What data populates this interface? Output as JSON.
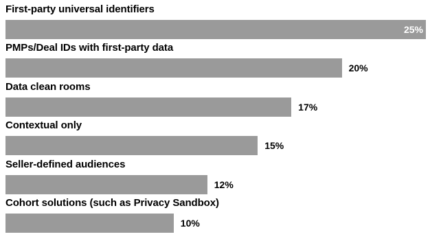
{
  "chart_data": {
    "type": "bar",
    "orientation": "horizontal",
    "categories": [
      "First-party universal identifiers",
      "PMPs/Deal IDs with first-party data",
      "Data clean rooms",
      "Contextual only",
      "Seller-defined audiences",
      "Cohort solutions (such as Privacy Sandbox)"
    ],
    "values": [
      25,
      20,
      17,
      15,
      12,
      10
    ],
    "value_labels": [
      "25%",
      "20%",
      "17%",
      "15%",
      "12%",
      "10%"
    ],
    "xlim": [
      0,
      25
    ],
    "bar_color": "#9a9a9a",
    "grid": false,
    "title": "",
    "xlabel": "",
    "ylabel": ""
  }
}
